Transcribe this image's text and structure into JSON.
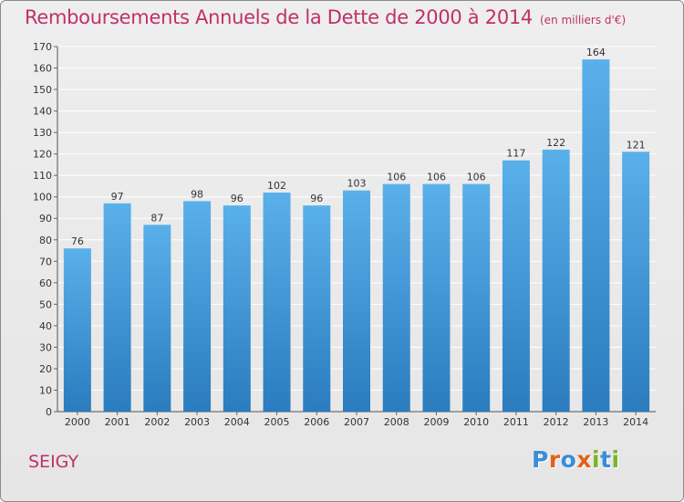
{
  "header": {
    "title": "Remboursements Annuels de la Dette de 2000 à 2014",
    "subtitle": "(en milliers d'€)"
  },
  "footer": {
    "commune": "SEIGY",
    "logo": [
      "P",
      "r",
      "o",
      "x",
      "i",
      "t",
      "i"
    ]
  },
  "colors": {
    "title": "#c0306a",
    "bar_top": "#5ab0ea",
    "bar_bottom": "#2a7cbe",
    "grid": "#ffffff",
    "logo": [
      "#3a8dd6",
      "#e0631a",
      "#3a8dd6",
      "#e0631a",
      "#7ab52a",
      "#3a8dd6",
      "#7ab52a"
    ]
  },
  "chart_data": {
    "type": "bar",
    "title": "Remboursements Annuels de la Dette de 2000 à 2014",
    "subtitle": "(en milliers d'€)",
    "xlabel": "",
    "ylabel": "",
    "categories": [
      "2000",
      "2001",
      "2002",
      "2003",
      "2004",
      "2005",
      "2006",
      "2007",
      "2008",
      "2009",
      "2010",
      "2011",
      "2012",
      "2013",
      "2014"
    ],
    "values": [
      76,
      97,
      87,
      98,
      96,
      102,
      96,
      103,
      106,
      106,
      106,
      117,
      122,
      164,
      121
    ],
    "ylim": [
      0,
      170
    ],
    "yticks": [
      0,
      10,
      20,
      30,
      40,
      50,
      60,
      70,
      80,
      90,
      100,
      110,
      120,
      130,
      140,
      150,
      160,
      170
    ],
    "grid": true,
    "data_labels": true
  }
}
